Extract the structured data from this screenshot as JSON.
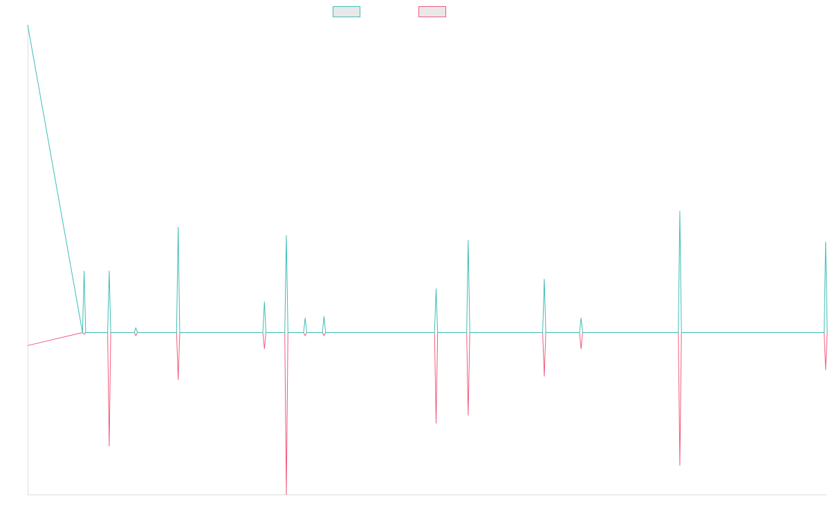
{
  "chart_data": {
    "type": "line",
    "title": "",
    "xlabel": "",
    "ylabel": "",
    "ylim": [
      -1.0,
      1.9
    ],
    "grid": false,
    "legend_position": "top-center",
    "series": [
      {
        "name": "",
        "color": "#3dbdb4",
        "fill": "#e8e8e8",
        "x": [
          0,
          70,
          72,
          74,
          102,
          104,
          106,
          136,
          138,
          140,
          190,
          192,
          194,
          300,
          302,
          304,
          328,
          330,
          332,
          352,
          354,
          356,
          376,
          378,
          380,
          519,
          521,
          523,
          560,
          562,
          564,
          657,
          659,
          661,
          704,
          706,
          708,
          830,
          832,
          834,
          1016,
          1018,
          1020
        ],
        "values": [
          1.9,
          0,
          0.38,
          0,
          0,
          0.38,
          0,
          0,
          0.03,
          0,
          0,
          0.65,
          0,
          0,
          0.19,
          0,
          0,
          0.6,
          0,
          0,
          0.09,
          0,
          0,
          0.1,
          0,
          0,
          0.27,
          0,
          0,
          0.57,
          0,
          0,
          0.33,
          0,
          0,
          0.09,
          0,
          0,
          0.75,
          0,
          0,
          0.56,
          0
        ]
      },
      {
        "name": "",
        "color": "#f05a7e",
        "fill": "#e8e8e8",
        "x": [
          0,
          70,
          72,
          74,
          102,
          104,
          106,
          136,
          138,
          140,
          190,
          192,
          194,
          300,
          302,
          304,
          328,
          330,
          332,
          352,
          354,
          356,
          376,
          378,
          380,
          519,
          521,
          523,
          560,
          562,
          564,
          657,
          659,
          661,
          704,
          706,
          708,
          830,
          832,
          834,
          1016,
          1018,
          1020
        ],
        "values": [
          -0.08,
          0,
          -0.01,
          0,
          0,
          -0.7,
          0,
          0,
          -0.02,
          0,
          0,
          -0.29,
          0,
          0,
          -0.1,
          0,
          0,
          -1.0,
          0,
          0,
          -0.02,
          0,
          0,
          -0.02,
          0,
          0,
          -0.56,
          0,
          0,
          -0.51,
          0,
          0,
          -0.27,
          0,
          0,
          -0.1,
          0,
          0,
          -0.82,
          0,
          0,
          -0.23,
          0
        ]
      }
    ]
  }
}
